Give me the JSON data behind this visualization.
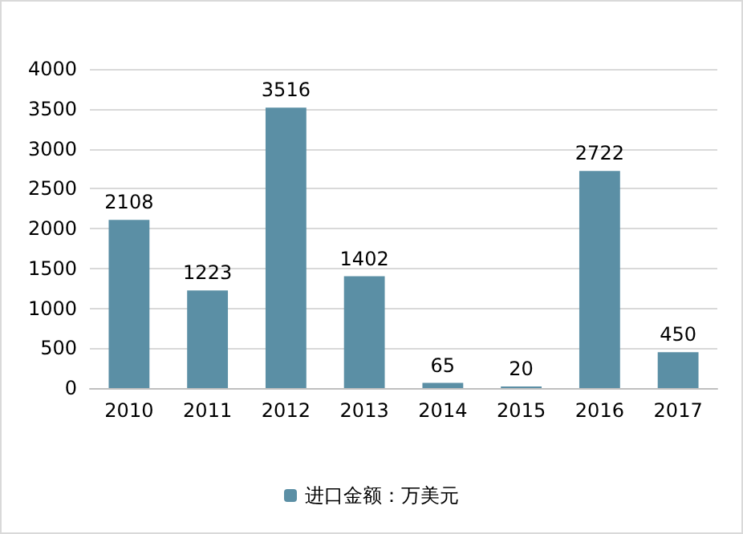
{
  "chart_data": {
    "type": "bar",
    "categories": [
      "2010",
      "2011",
      "2012",
      "2013",
      "2014",
      "2015",
      "2016",
      "2017"
    ],
    "series": [
      {
        "name": "进口金额：万美元",
        "color": "#5b8fa5",
        "values": [
          2108,
          1223,
          3516,
          1402,
          65,
          20,
          2722,
          450
        ]
      }
    ],
    "ylim": [
      0,
      4000
    ],
    "yticks": [
      0,
      500,
      1000,
      1500,
      2000,
      2500,
      3000,
      3500,
      4000
    ],
    "grid": "y",
    "legend": "bottom",
    "data_labels": true
  }
}
